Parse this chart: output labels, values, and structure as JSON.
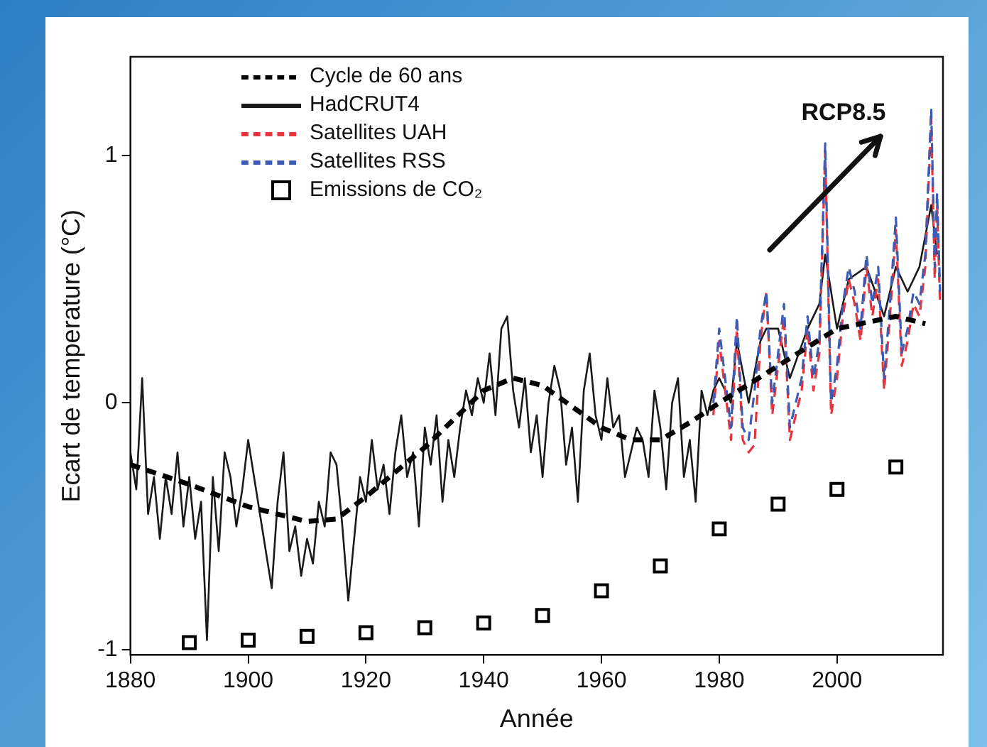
{
  "chart_data": {
    "type": "line",
    "xlabel": "Année",
    "ylabel": "Ecart de temperature (°C)",
    "xlim": [
      1880,
      2018
    ],
    "xticks": [
      1880,
      1900,
      1920,
      1940,
      1960,
      1980,
      2000
    ],
    "ylim": [
      -1.02,
      1.4
    ],
    "yticks": [
      -1,
      0,
      1
    ],
    "grid": false,
    "legend": "top left",
    "annotations": [
      "RCP8.5"
    ],
    "series": [
      {
        "name": "Cycle de 60 ans",
        "line_style": "dashed",
        "color": "#000000",
        "x": [
          1880,
          1890,
          1900,
          1910,
          1915,
          1920,
          1930,
          1940,
          1945,
          1950,
          1960,
          1965,
          1970,
          1975,
          1980,
          1990,
          2000,
          2010,
          2015
        ],
        "values": [
          -0.25,
          -0.33,
          -0.42,
          -0.48,
          -0.47,
          -0.38,
          -0.18,
          0.05,
          0.1,
          0.07,
          -0.1,
          -0.15,
          -0.15,
          -0.08,
          0.0,
          0.15,
          0.3,
          0.35,
          0.32
        ]
      },
      {
        "name": "HadCRUT4",
        "line_style": "solid",
        "color": "#1a1a1a",
        "x": [
          1880,
          1881,
          1882,
          1883,
          1884,
          1885,
          1886,
          1887,
          1888,
          1889,
          1890,
          1891,
          1892,
          1893,
          1894,
          1895,
          1896,
          1897,
          1898,
          1899,
          1900,
          1901,
          1902,
          1903,
          1904,
          1905,
          1906,
          1907,
          1908,
          1909,
          1910,
          1911,
          1912,
          1913,
          1914,
          1915,
          1916,
          1917,
          1918,
          1919,
          1920,
          1921,
          1922,
          1923,
          1924,
          1925,
          1926,
          1927,
          1928,
          1929,
          1930,
          1931,
          1932,
          1933,
          1934,
          1935,
          1936,
          1937,
          1938,
          1939,
          1940,
          1941,
          1942,
          1943,
          1944,
          1945,
          1946,
          1947,
          1948,
          1949,
          1950,
          1951,
          1952,
          1953,
          1954,
          1955,
          1956,
          1957,
          1958,
          1959,
          1960,
          1961,
          1962,
          1963,
          1964,
          1965,
          1966,
          1967,
          1968,
          1969,
          1970,
          1971,
          1972,
          1973,
          1974,
          1975,
          1976,
          1977,
          1978,
          1979,
          1980,
          1982,
          1983,
          1985,
          1987,
          1988,
          1990,
          1992,
          1995,
          1997,
          1998,
          2000,
          2002,
          2005,
          2008,
          2010,
          2012,
          2014,
          2016,
          2017
        ],
        "values": [
          -0.2,
          -0.35,
          0.1,
          -0.45,
          -0.3,
          -0.55,
          -0.3,
          -0.45,
          -0.2,
          -0.5,
          -0.3,
          -0.55,
          -0.4,
          -0.96,
          -0.3,
          -0.6,
          -0.2,
          -0.3,
          -0.5,
          -0.35,
          -0.15,
          -0.3,
          -0.45,
          -0.6,
          -0.75,
          -0.4,
          -0.2,
          -0.6,
          -0.5,
          -0.7,
          -0.55,
          -0.65,
          -0.4,
          -0.5,
          -0.2,
          -0.25,
          -0.5,
          -0.8,
          -0.55,
          -0.3,
          -0.4,
          -0.15,
          -0.35,
          -0.25,
          -0.45,
          -0.2,
          -0.05,
          -0.3,
          -0.2,
          -0.5,
          -0.1,
          -0.25,
          -0.05,
          -0.4,
          -0.15,
          -0.3,
          -0.1,
          0.05,
          -0.05,
          0.1,
          0.0,
          0.2,
          -0.05,
          0.3,
          0.35,
          0.05,
          -0.1,
          0.1,
          -0.2,
          -0.05,
          -0.3,
          0.0,
          0.15,
          0.05,
          -0.25,
          -0.1,
          -0.4,
          0.05,
          0.2,
          -0.05,
          -0.15,
          0.1,
          -0.1,
          -0.05,
          -0.3,
          -0.2,
          -0.1,
          -0.15,
          -0.3,
          0.05,
          -0.1,
          -0.35,
          0.0,
          0.1,
          -0.3,
          -0.15,
          -0.4,
          0.05,
          -0.05,
          0.05,
          0.1,
          0.0,
          0.25,
          0.0,
          0.25,
          0.3,
          0.3,
          0.1,
          0.3,
          0.4,
          0.6,
          0.3,
          0.5,
          0.55,
          0.35,
          0.55,
          0.45,
          0.55,
          0.8,
          0.6
        ]
      },
      {
        "name": "Satellites UAH",
        "line_style": "dashed",
        "color": "#e8343c",
        "x": [
          1979,
          1980,
          1981,
          1982,
          1983,
          1984,
          1985,
          1986,
          1987,
          1988,
          1989,
          1990,
          1991,
          1992,
          1993,
          1994,
          1995,
          1996,
          1997,
          1998,
          1998.7,
          1999,
          2000,
          2001,
          2002,
          2003,
          2004,
          2005,
          2006,
          2007,
          2008,
          2009,
          2010,
          2011,
          2012,
          2013,
          2014,
          2015,
          2016,
          2016.6,
          2017,
          2017.5
        ],
        "values": [
          -0.05,
          0.25,
          0.05,
          -0.15,
          0.3,
          -0.15,
          -0.2,
          -0.17,
          0.25,
          0.45,
          -0.05,
          0.15,
          0.35,
          -0.15,
          -0.05,
          0.05,
          0.3,
          0.05,
          0.2,
          1.02,
          0.25,
          -0.05,
          0.1,
          0.35,
          0.5,
          0.4,
          0.25,
          0.55,
          0.35,
          0.5,
          0.05,
          0.35,
          0.7,
          0.15,
          0.25,
          0.4,
          0.35,
          0.55,
          1.15,
          0.5,
          0.8,
          0.4
        ]
      },
      {
        "name": "Satellites RSS",
        "line_style": "dashed",
        "color": "#3b5bb5",
        "x": [
          1979,
          1980,
          1981,
          1982,
          1983,
          1984,
          1985,
          1986,
          1987,
          1988,
          1989,
          1990,
          1991,
          1992,
          1993,
          1994,
          1995,
          1996,
          1997,
          1998,
          1998.7,
          1999,
          2000,
          2001,
          2002,
          2003,
          2004,
          2005,
          2006,
          2007,
          2008,
          2009,
          2010,
          2011,
          2012,
          2013,
          2014,
          2015,
          2016,
          2016.6,
          2017,
          2017.5
        ],
        "values": [
          0.0,
          0.3,
          0.1,
          -0.1,
          0.35,
          -0.1,
          -0.15,
          0.05,
          0.3,
          0.45,
          0.0,
          0.2,
          0.4,
          -0.1,
          0.0,
          0.1,
          0.35,
          0.1,
          0.25,
          1.05,
          0.3,
          0.0,
          0.15,
          0.4,
          0.55,
          0.45,
          0.3,
          0.6,
          0.4,
          0.55,
          0.1,
          0.4,
          0.75,
          0.2,
          0.3,
          0.45,
          0.4,
          0.6,
          1.19,
          0.55,
          0.85,
          0.45
        ]
      },
      {
        "name": "Emissions de CO₂",
        "type": "scatter",
        "marker": "square",
        "color": "#000000",
        "x": [
          1890,
          1900,
          1910,
          1920,
          1930,
          1940,
          1950,
          1960,
          1970,
          1980,
          1990,
          2000,
          2010
        ],
        "values": [
          -0.97,
          -0.96,
          -0.945,
          -0.93,
          -0.91,
          -0.89,
          -0.86,
          -0.76,
          -0.66,
          -0.51,
          -0.41,
          -0.35,
          -0.26
        ]
      }
    ]
  }
}
